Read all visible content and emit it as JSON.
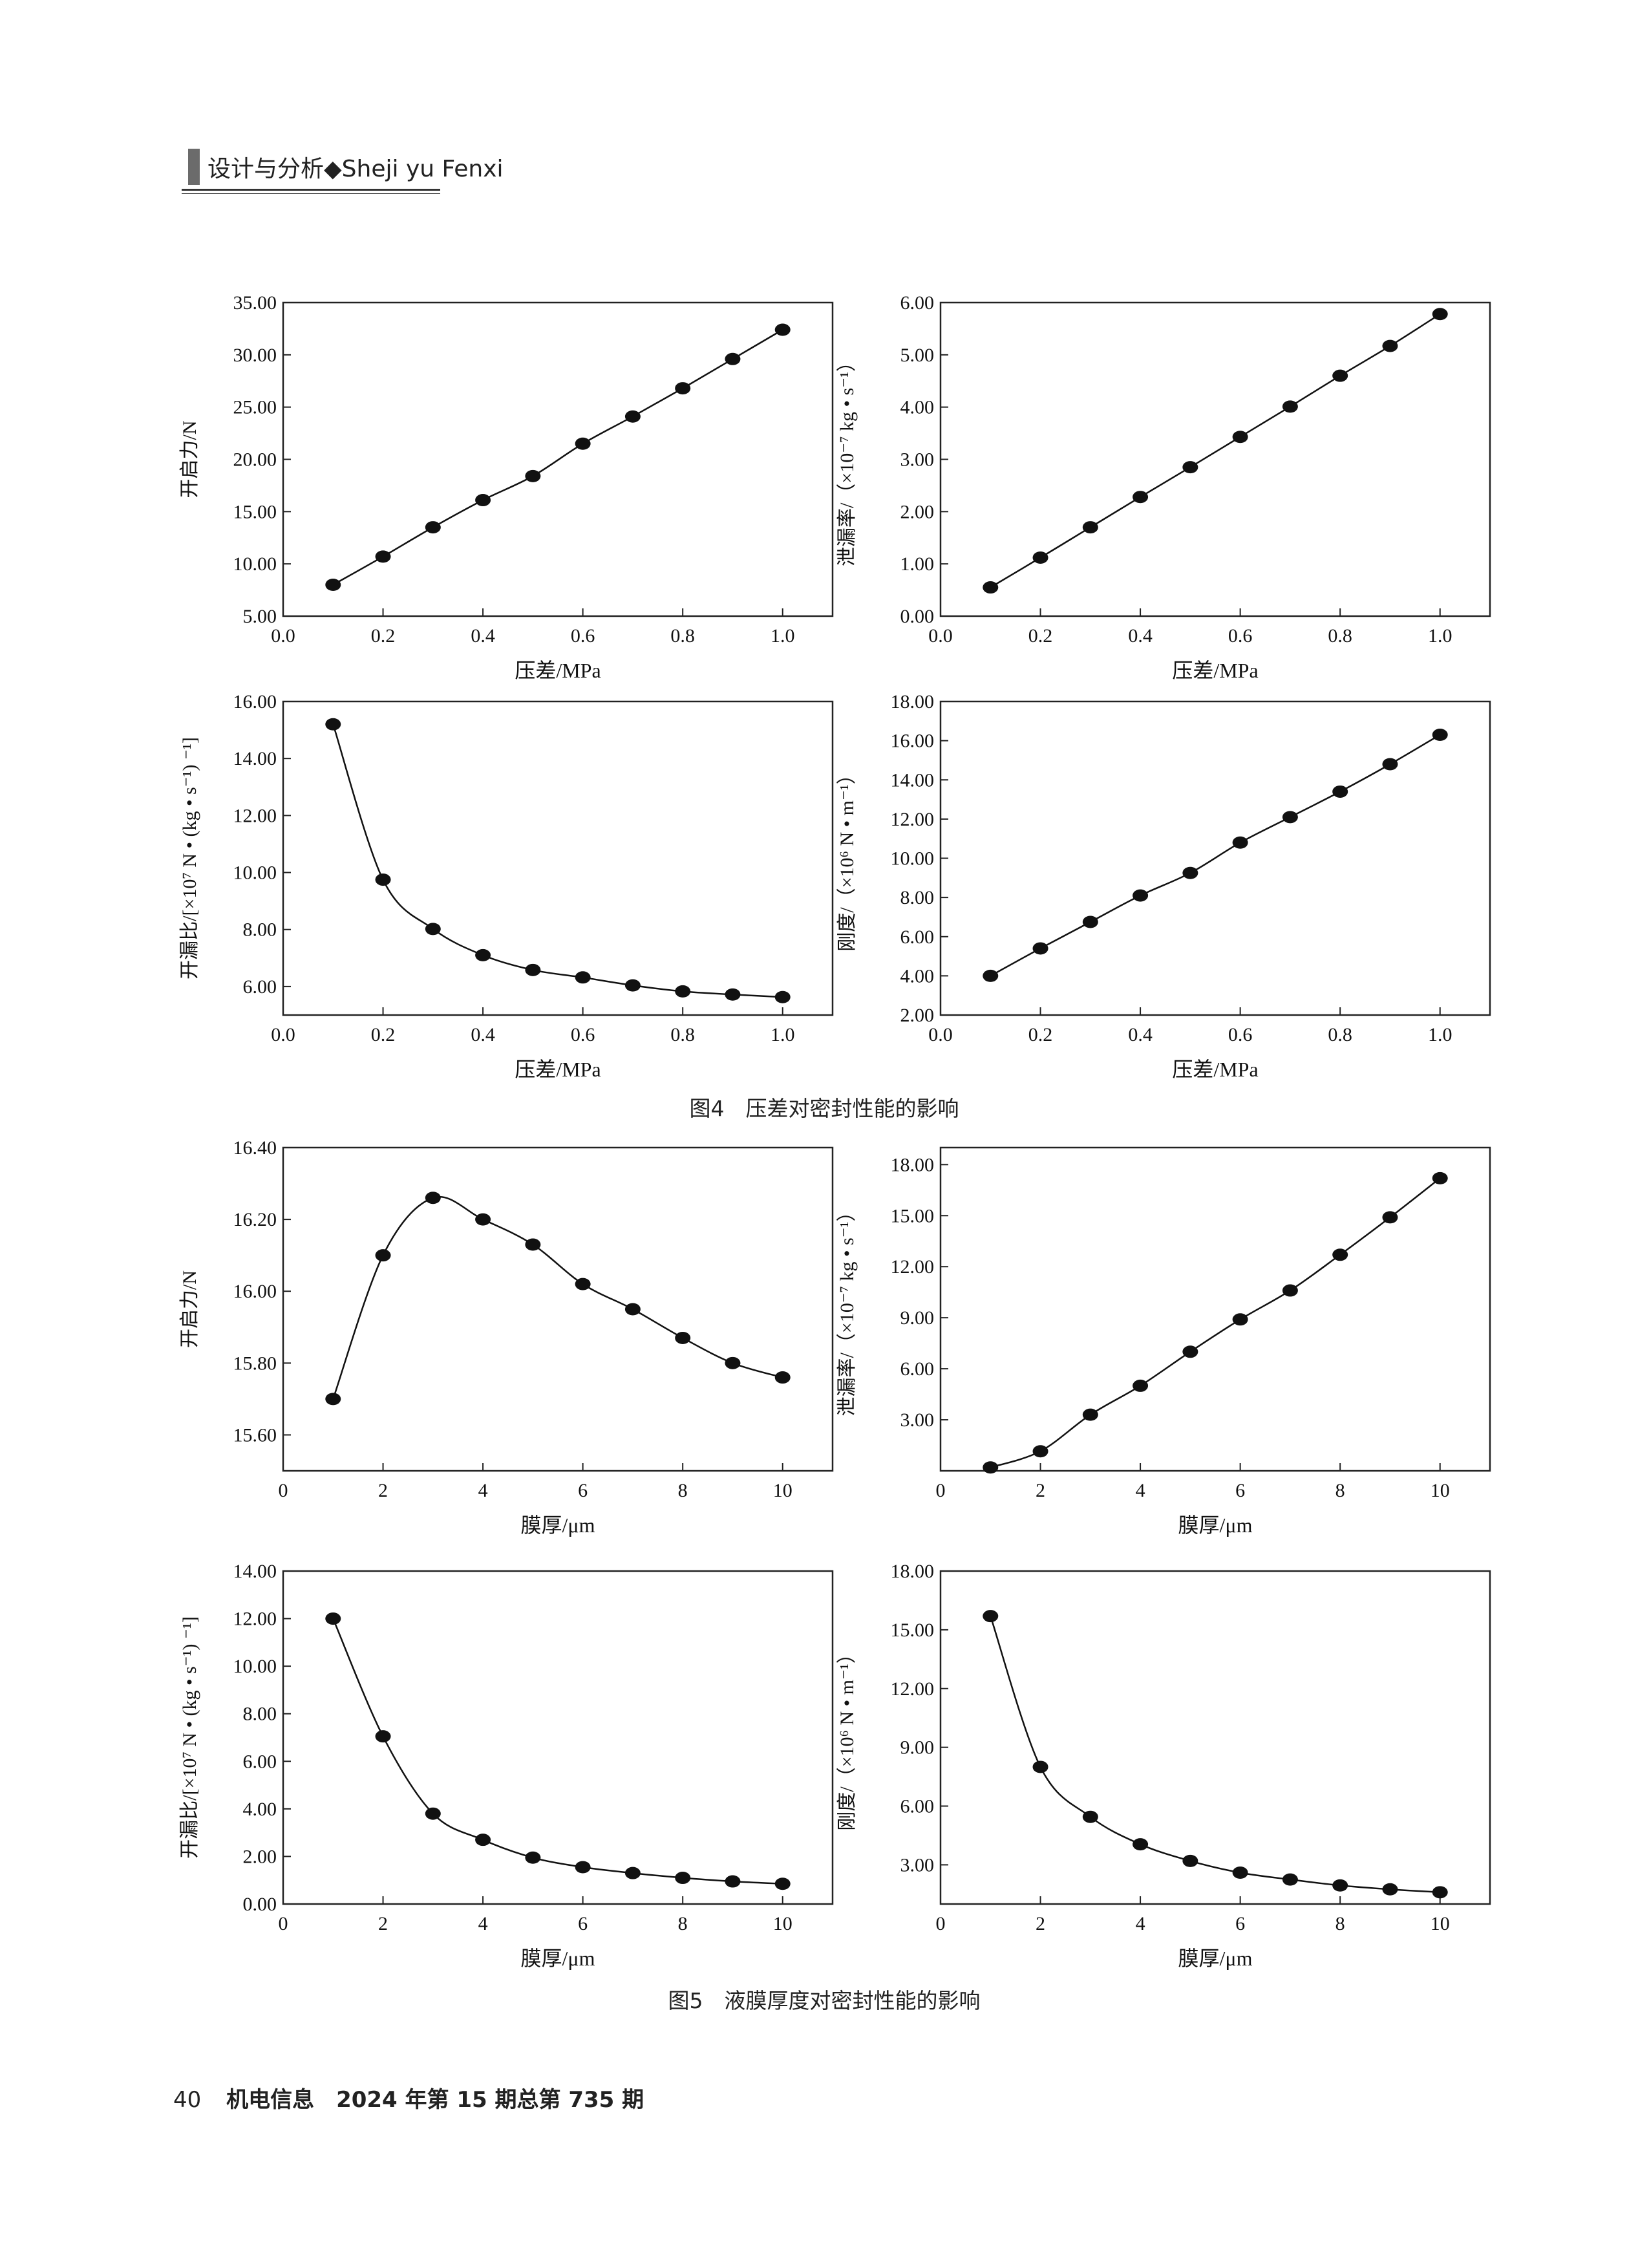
{
  "header": {
    "text": "设计与分析◆Sheji yu Fenxi"
  },
  "figures": [
    {
      "caption": "图4　压差对密封性能的影响"
    },
    {
      "caption": "图5　液膜厚度对密封性能的影响"
    }
  ],
  "footer": {
    "page_number": "40",
    "journal": "机电信息　2024 年第 15 期总第 735 期"
  },
  "chart_data": [
    {
      "id": "fig4a",
      "type": "line",
      "xlabel": "压差/MPa",
      "ylabel": "开启力/N",
      "xlim": [
        0,
        1.1
      ],
      "ylim": [
        5,
        35
      ],
      "xticks": [
        "0.0",
        "0.2",
        "0.4",
        "0.6",
        "0.8",
        "1.0"
      ],
      "yticks": [
        "5.00",
        "10.00",
        "15.00",
        "20.00",
        "25.00",
        "30.00",
        "35.00"
      ],
      "x": [
        0.1,
        0.2,
        0.3,
        0.4,
        0.5,
        0.6,
        0.7,
        0.8,
        0.9,
        1.0
      ],
      "values": [
        8.0,
        10.7,
        13.5,
        16.1,
        18.4,
        21.5,
        24.1,
        26.8,
        29.6,
        32.4
      ],
      "grid": false
    },
    {
      "id": "fig4b",
      "type": "line",
      "xlabel": "压差/MPa",
      "ylabel": "泄漏率/（×10⁻⁷ kg • s⁻¹）",
      "xlim": [
        0,
        1.1
      ],
      "ylim": [
        0,
        6
      ],
      "xticks": [
        "0.0",
        "0.2",
        "0.4",
        "0.6",
        "0.8",
        "1.0"
      ],
      "yticks": [
        "0.00",
        "1.00",
        "2.00",
        "3.00",
        "4.00",
        "5.00",
        "6.00"
      ],
      "x": [
        0.1,
        0.2,
        0.3,
        0.4,
        0.5,
        0.6,
        0.7,
        0.8,
        0.9,
        1.0
      ],
      "values": [
        0.55,
        1.12,
        1.7,
        2.28,
        2.85,
        3.43,
        4.01,
        4.6,
        5.17,
        5.78
      ],
      "grid": false
    },
    {
      "id": "fig4c",
      "type": "line",
      "xlabel": "压差/MPa",
      "ylabel": "开漏比/[×10⁷ N • (kg • s⁻¹) ⁻¹]",
      "xlim": [
        0,
        1.1
      ],
      "ylim": [
        5,
        16
      ],
      "xticks": [
        "0.0",
        "0.2",
        "0.4",
        "0.6",
        "0.8",
        "1.0"
      ],
      "yticks": [
        "6.00",
        "8.00",
        "10.00",
        "12.00",
        "14.00",
        "16.00"
      ],
      "x": [
        0.1,
        0.2,
        0.3,
        0.4,
        0.5,
        0.6,
        0.7,
        0.8,
        0.9,
        1.0
      ],
      "values": [
        15.2,
        9.75,
        8.02,
        7.1,
        6.58,
        6.32,
        6.04,
        5.83,
        5.72,
        5.63
      ],
      "grid": false
    },
    {
      "id": "fig4d",
      "type": "line",
      "xlabel": "压差/MPa",
      "ylabel": "刚度/（×10⁶ N • m⁻¹）",
      "xlim": [
        0,
        1.1
      ],
      "ylim": [
        2,
        18
      ],
      "xticks": [
        "0.0",
        "0.2",
        "0.4",
        "0.6",
        "0.8",
        "1.0"
      ],
      "yticks": [
        "2.00",
        "4.00",
        "6.00",
        "8.00",
        "10.00",
        "12.00",
        "14.00",
        "16.00",
        "18.00"
      ],
      "x": [
        0.1,
        0.2,
        0.3,
        0.4,
        0.5,
        0.6,
        0.7,
        0.8,
        0.9,
        1.0
      ],
      "values": [
        4.0,
        5.4,
        6.75,
        8.1,
        9.25,
        10.8,
        12.1,
        13.4,
        14.8,
        16.3
      ],
      "grid": false
    },
    {
      "id": "fig5a",
      "type": "line",
      "xlabel": "膜厚/μm",
      "ylabel": "开启力/N",
      "xlim": [
        0,
        11
      ],
      "ylim": [
        15.5,
        16.4
      ],
      "xticks": [
        "0",
        "2",
        "4",
        "6",
        "8",
        "10"
      ],
      "yticks": [
        "15.60",
        "15.80",
        "16.00",
        "16.20",
        "16.40"
      ],
      "x": [
        1,
        2,
        3,
        4,
        5,
        6,
        7,
        8,
        9,
        10
      ],
      "values": [
        15.7,
        16.1,
        16.26,
        16.2,
        16.13,
        16.02,
        15.95,
        15.87,
        15.8,
        15.76
      ],
      "grid": false
    },
    {
      "id": "fig5b",
      "type": "line",
      "xlabel": "膜厚/μm",
      "ylabel": "泄漏率/（×10⁻⁷ kg • s⁻¹）",
      "xlim": [
        0,
        11
      ],
      "ylim": [
        0,
        19
      ],
      "xticks": [
        "0",
        "2",
        "4",
        "6",
        "8",
        "10"
      ],
      "yticks": [
        "3.00",
        "6.00",
        "9.00",
        "12.00",
        "15.00",
        "18.00"
      ],
      "x": [
        1,
        2,
        3,
        4,
        5,
        6,
        7,
        8,
        9,
        10
      ],
      "values": [
        0.2,
        1.15,
        3.3,
        5.0,
        7.0,
        8.9,
        10.6,
        12.7,
        14.9,
        17.2
      ],
      "grid": false
    },
    {
      "id": "fig5c",
      "type": "line",
      "xlabel": "膜厚/μm",
      "ylabel": "开漏比/[×10⁷ N • (kg • s⁻¹) ⁻¹]",
      "xlim": [
        0,
        11
      ],
      "ylim": [
        0,
        14
      ],
      "xticks": [
        "0",
        "2",
        "4",
        "6",
        "8",
        "10"
      ],
      "yticks": [
        "0.00",
        "2.00",
        "4.00",
        "6.00",
        "8.00",
        "10.00",
        "12.00",
        "14.00"
      ],
      "x": [
        1,
        2,
        3,
        4,
        5,
        6,
        7,
        8,
        9,
        10
      ],
      "values": [
        12.0,
        7.05,
        3.8,
        2.7,
        1.95,
        1.55,
        1.3,
        1.1,
        0.95,
        0.85
      ],
      "grid": false
    },
    {
      "id": "fig5d",
      "type": "line",
      "xlabel": "膜厚/μm",
      "ylabel": "刚度/（×10⁶ N • m⁻¹）",
      "xlim": [
        0,
        11
      ],
      "ylim": [
        1,
        18
      ],
      "xticks": [
        "0",
        "2",
        "4",
        "6",
        "8",
        "10"
      ],
      "yticks": [
        "3.00",
        "6.00",
        "9.00",
        "12.00",
        "15.00",
        "18.00"
      ],
      "x": [
        1,
        2,
        3,
        4,
        5,
        6,
        7,
        8,
        9,
        10
      ],
      "values": [
        15.7,
        8.0,
        5.45,
        4.05,
        3.2,
        2.6,
        2.25,
        1.95,
        1.75,
        1.6
      ],
      "grid": false
    }
  ]
}
